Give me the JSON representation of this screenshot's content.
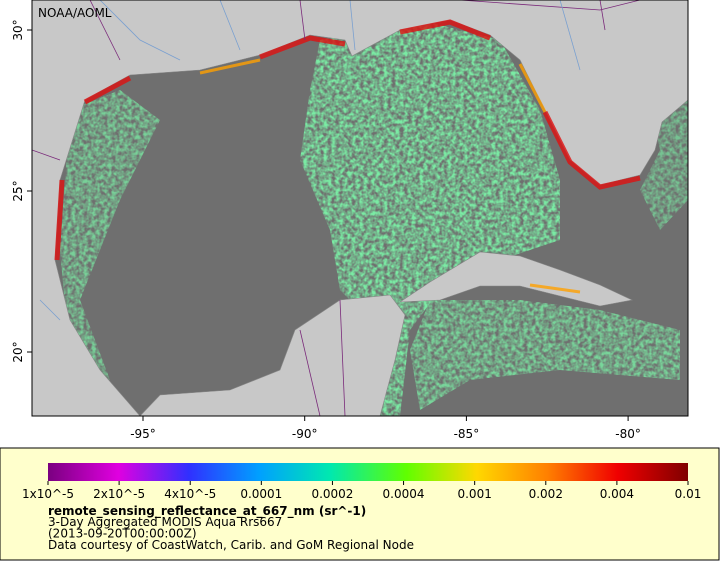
{
  "map": {
    "credit": "NOAA/AOML",
    "lon_ticks": [
      "-95°",
      "-90°",
      "-85°",
      "-80°"
    ],
    "lat_ticks": [
      "30°",
      "25°",
      "20°"
    ]
  },
  "legend": {
    "scale_labels": [
      "1x10^-5",
      "2x10^-5",
      "4x10^-5",
      "0.0001",
      "0.0002",
      "0.0004",
      "0.001",
      "0.002",
      "0.004",
      "0.01"
    ],
    "variable": "remote_sensing_reflectance_at_667_nm (sr^-1)",
    "lines": [
      "3-Day Aggregated MODIS Aqua Rrs667",
      "(2013-09-20T00:00:00Z)",
      "Data courtesy of CoastWatch, Carib. and GoM Regional Node"
    ]
  }
}
